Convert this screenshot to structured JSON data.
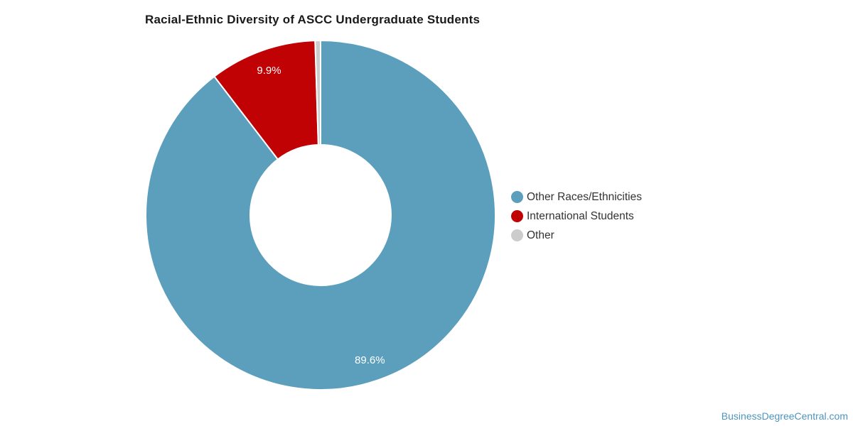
{
  "chart_data": {
    "type": "pie",
    "subtype": "donut",
    "title": "Racial-Ethnic Diversity of ASCC Undergraduate Students",
    "start_angle_deg": 0,
    "direction": "clockwise",
    "legend_position": "right",
    "slice_label_color": "#ffffff",
    "slice_border_color": "#ffffff",
    "slices": [
      {
        "name": "Other Races/Ethnicities",
        "value": 89.6,
        "label": "89.6%",
        "color": "#5B9FBD"
      },
      {
        "name": "International Students",
        "value": 9.9,
        "label": "9.9%",
        "color": "#C00205"
      },
      {
        "name": "Other",
        "value": 0.5,
        "label": "",
        "color": "#CCCCCC"
      }
    ]
  },
  "footer": {
    "watermark": "BusinessDegreeCentral.com",
    "watermark_color": "#4E94BD"
  }
}
